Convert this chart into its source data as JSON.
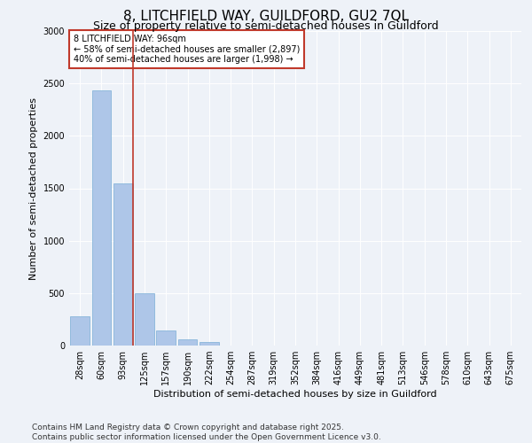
{
  "title": "8, LITCHFIELD WAY, GUILDFORD, GU2 7QL",
  "subtitle": "Size of property relative to semi-detached houses in Guildford",
  "xlabel": "Distribution of semi-detached houses by size in Guildford",
  "ylabel": "Number of semi-detached properties",
  "categories": [
    "28sqm",
    "60sqm",
    "93sqm",
    "125sqm",
    "157sqm",
    "190sqm",
    "222sqm",
    "254sqm",
    "287sqm",
    "319sqm",
    "352sqm",
    "384sqm",
    "416sqm",
    "449sqm",
    "481sqm",
    "513sqm",
    "546sqm",
    "578sqm",
    "610sqm",
    "643sqm",
    "675sqm"
  ],
  "values": [
    280,
    2430,
    1550,
    500,
    140,
    60,
    30,
    0,
    0,
    0,
    0,
    0,
    0,
    0,
    0,
    0,
    0,
    0,
    0,
    0,
    0
  ],
  "bar_color": "#aec6e8",
  "bar_edge_color": "#7aaed6",
  "vline_color": "#c0392b",
  "annotation_title": "8 LITCHFIELD WAY: 96sqm",
  "annotation_line1": "← 58% of semi-detached houses are smaller (2,897)",
  "annotation_line2": "40% of semi-detached houses are larger (1,998) →",
  "annotation_box_color": "#c0392b",
  "ylim": [
    0,
    3000
  ],
  "yticks": [
    0,
    500,
    1000,
    1500,
    2000,
    2500,
    3000
  ],
  "footer_line1": "Contains HM Land Registry data © Crown copyright and database right 2025.",
  "footer_line2": "Contains public sector information licensed under the Open Government Licence v3.0.",
  "background_color": "#eef2f8",
  "plot_bg_color": "#eef2f8",
  "title_fontsize": 11,
  "subtitle_fontsize": 9,
  "ylabel_fontsize": 8,
  "xlabel_fontsize": 8,
  "tick_fontsize": 7,
  "annotation_fontsize": 7,
  "footer_fontsize": 6.5
}
